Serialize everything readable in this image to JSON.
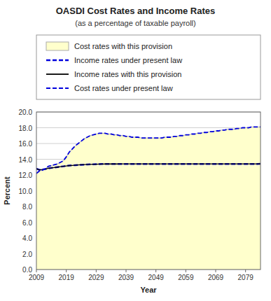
{
  "chart_data": {
    "type": "line",
    "title": "OASDI Cost Rates and Income Rates",
    "subtitle": "(as a percentage of taxable payroll)",
    "x_label": "Year",
    "y_label": "Percent",
    "xlim": [
      2009,
      2084
    ],
    "ylim": [
      0.0,
      20.0
    ],
    "xticks": [
      2009,
      2019,
      2029,
      2039,
      2049,
      2059,
      2069,
      2079
    ],
    "yticks": [
      {
        "value": 0.0,
        "label": "0.0"
      },
      {
        "value": 2.0,
        "label": "2.0"
      },
      {
        "value": 4.0,
        "label": "4.0"
      },
      {
        "value": 6.0,
        "label": "6.0"
      },
      {
        "value": 8.0,
        "label": "8.0"
      },
      {
        "value": 10.0,
        "label": "10.0"
      },
      {
        "value": 12.0,
        "label": "12.0"
      },
      {
        "value": 14.0,
        "label": "14.0"
      },
      {
        "value": 16.0,
        "label": "16.0"
      },
      {
        "value": 18.0,
        "label": "18.0"
      },
      {
        "value": 20.0,
        "label": "20.0"
      }
    ],
    "grid": true,
    "legend": "top",
    "x": [
      2009,
      2010,
      2011,
      2012,
      2013,
      2014,
      2015,
      2016,
      2017,
      2018,
      2019,
      2020,
      2021,
      2022,
      2023,
      2024,
      2025,
      2026,
      2027,
      2028,
      2029,
      2030,
      2031,
      2032,
      2033,
      2034,
      2035,
      2036,
      2037,
      2038,
      2039,
      2040,
      2041,
      2042,
      2043,
      2044,
      2045,
      2046,
      2047,
      2048,
      2049,
      2050,
      2051,
      2052,
      2053,
      2054,
      2055,
      2056,
      2057,
      2058,
      2059,
      2060,
      2061,
      2062,
      2063,
      2064,
      2065,
      2066,
      2067,
      2068,
      2069,
      2070,
      2071,
      2072,
      2073,
      2074,
      2075,
      2076,
      2077,
      2078,
      2079,
      2080,
      2081,
      2082,
      2083,
      2084
    ],
    "series": [
      {
        "name": "Cost rates with this provision",
        "type": "area",
        "color": "#ffffcc",
        "line_style": "solid",
        "values": [
          12.2,
          12.5,
          12.6,
          12.8,
          13.1,
          13.2,
          13.3,
          13.4,
          13.6,
          13.8,
          14.3,
          14.9,
          15.3,
          15.7,
          16.0,
          16.3,
          16.6,
          16.8,
          17.0,
          17.1,
          17.2,
          17.3,
          17.3,
          17.3,
          17.2,
          17.2,
          17.1,
          17.1,
          17.0,
          17.0,
          16.9,
          16.9,
          16.8,
          16.8,
          16.8,
          16.7,
          16.7,
          16.7,
          16.7,
          16.7,
          16.7,
          16.7,
          16.7,
          16.8,
          16.8,
          16.8,
          16.9,
          16.9,
          17.0,
          17.0,
          17.1,
          17.1,
          17.2,
          17.2,
          17.3,
          17.3,
          17.4,
          17.4,
          17.5,
          17.5,
          17.6,
          17.6,
          17.7,
          17.7,
          17.8,
          17.8,
          17.8,
          17.9,
          17.9,
          18.0,
          18.0,
          18.0,
          18.1,
          18.1,
          18.1,
          18.1
        ]
      },
      {
        "name": "Income rates under present law",
        "type": "line",
        "color": "#0000dd",
        "line_style": "dashed",
        "values": [
          12.8,
          12.65,
          12.7,
          12.75,
          12.85,
          12.9,
          12.95,
          13.0,
          13.05,
          13.1,
          13.15,
          13.2,
          13.22,
          13.25,
          13.28,
          13.3,
          13.32,
          13.34,
          13.35,
          13.36,
          13.37,
          13.38,
          13.39,
          13.4,
          13.4,
          13.4,
          13.4,
          13.4,
          13.41,
          13.41,
          13.41,
          13.41,
          13.41,
          13.41,
          13.41,
          13.41,
          13.41,
          13.41,
          13.41,
          13.41,
          13.41,
          13.41,
          13.41,
          13.41,
          13.41,
          13.41,
          13.41,
          13.41,
          13.41,
          13.41,
          13.41,
          13.41,
          13.41,
          13.41,
          13.41,
          13.41,
          13.41,
          13.41,
          13.41,
          13.41,
          13.41,
          13.41,
          13.41,
          13.41,
          13.41,
          13.41,
          13.41,
          13.41,
          13.41,
          13.41,
          13.41,
          13.41,
          13.41,
          13.41,
          13.41,
          13.42
        ]
      },
      {
        "name": "Income rates with this provision",
        "type": "line",
        "color": "#000000",
        "line_style": "solid",
        "values": [
          12.8,
          12.65,
          12.7,
          12.75,
          12.85,
          12.9,
          12.95,
          13.0,
          13.05,
          13.1,
          13.15,
          13.2,
          13.22,
          13.25,
          13.28,
          13.3,
          13.32,
          13.34,
          13.35,
          13.36,
          13.37,
          13.38,
          13.39,
          13.4,
          13.4,
          13.4,
          13.4,
          13.4,
          13.41,
          13.41,
          13.41,
          13.41,
          13.41,
          13.41,
          13.41,
          13.41,
          13.41,
          13.41,
          13.41,
          13.41,
          13.41,
          13.41,
          13.41,
          13.41,
          13.41,
          13.41,
          13.41,
          13.41,
          13.41,
          13.41,
          13.41,
          13.41,
          13.41,
          13.41,
          13.41,
          13.41,
          13.41,
          13.41,
          13.41,
          13.41,
          13.41,
          13.41,
          13.41,
          13.41,
          13.41,
          13.41,
          13.41,
          13.41,
          13.41,
          13.41,
          13.41,
          13.41,
          13.41,
          13.41,
          13.41,
          13.42
        ]
      },
      {
        "name": "Cost rates under present law",
        "type": "line",
        "color": "#0000dd",
        "line_style": "dashed",
        "values": [
          12.2,
          12.5,
          12.6,
          12.8,
          13.1,
          13.2,
          13.3,
          13.4,
          13.6,
          13.8,
          14.3,
          14.9,
          15.3,
          15.7,
          16.0,
          16.3,
          16.6,
          16.8,
          17.0,
          17.1,
          17.2,
          17.3,
          17.3,
          17.3,
          17.2,
          17.2,
          17.1,
          17.1,
          17.0,
          17.0,
          16.9,
          16.9,
          16.8,
          16.8,
          16.8,
          16.7,
          16.7,
          16.7,
          16.7,
          16.7,
          16.7,
          16.7,
          16.7,
          16.8,
          16.8,
          16.8,
          16.9,
          16.9,
          17.0,
          17.0,
          17.1,
          17.1,
          17.2,
          17.2,
          17.3,
          17.3,
          17.4,
          17.4,
          17.5,
          17.5,
          17.6,
          17.6,
          17.7,
          17.7,
          17.8,
          17.8,
          17.8,
          17.9,
          17.9,
          18.0,
          18.0,
          18.0,
          18.1,
          18.1,
          18.1,
          18.1
        ]
      }
    ]
  }
}
